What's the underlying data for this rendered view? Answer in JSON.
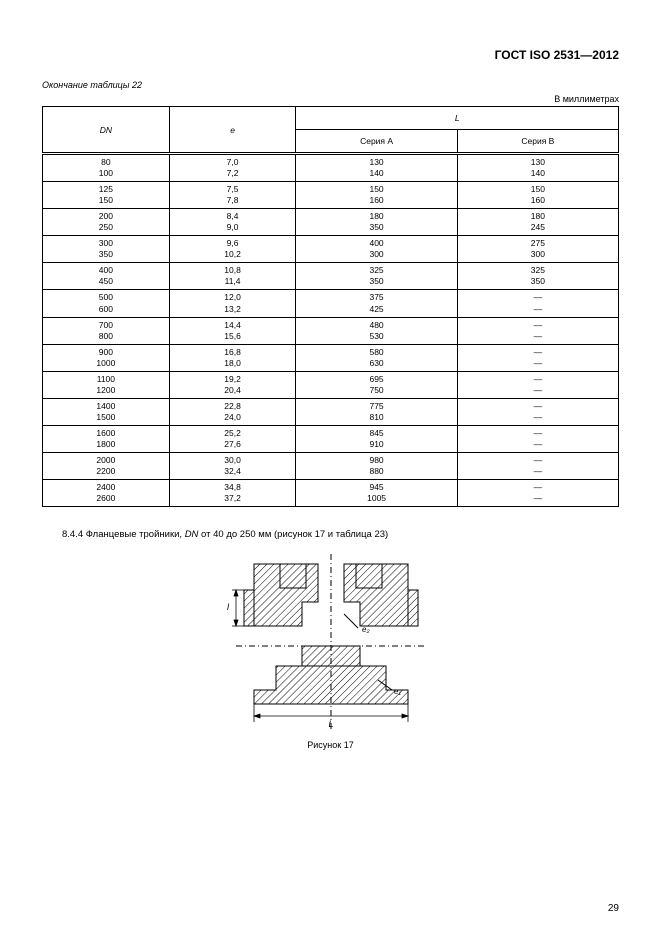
{
  "document": {
    "header": "ГОСТ ISO 2531—2012",
    "tableEndLabel": "Окончание таблицы 22",
    "unitsLabel": "В миллиметрах",
    "pageNumber": "29"
  },
  "table": {
    "columns": {
      "col1": "DN",
      "col2": "e",
      "col3_group": "L",
      "col3a": "Серия А",
      "col3b": "Серия В"
    },
    "colWidths": [
      "22%",
      "22%",
      "28%",
      "28%"
    ],
    "groups": [
      {
        "rows": [
          [
            "80",
            "7,0",
            "130",
            "130"
          ],
          [
            "100",
            "7,2",
            "140",
            "140"
          ]
        ]
      },
      {
        "rows": [
          [
            "125",
            "7,5",
            "150",
            "150"
          ],
          [
            "150",
            "7,8",
            "160",
            "160"
          ]
        ]
      },
      {
        "rows": [
          [
            "200",
            "8,4",
            "180",
            "180"
          ],
          [
            "250",
            "9,0",
            "350",
            "245"
          ]
        ]
      },
      {
        "rows": [
          [
            "300",
            "9,6",
            "400",
            "275"
          ],
          [
            "350",
            "10,2",
            "300",
            "300"
          ]
        ]
      },
      {
        "rows": [
          [
            "400",
            "10,8",
            "325",
            "325"
          ],
          [
            "450",
            "11,4",
            "350",
            "350"
          ]
        ]
      },
      {
        "rows": [
          [
            "500",
            "12,0",
            "375",
            "—"
          ],
          [
            "600",
            "13,2",
            "425",
            "—"
          ]
        ]
      },
      {
        "rows": [
          [
            "700",
            "14,4",
            "480",
            "—"
          ],
          [
            "800",
            "15,6",
            "530",
            "—"
          ]
        ]
      },
      {
        "rows": [
          [
            "900",
            "16,8",
            "580",
            "—"
          ],
          [
            "1000",
            "18,0",
            "630",
            "—"
          ]
        ]
      },
      {
        "rows": [
          [
            "1100",
            "19,2",
            "695",
            "—"
          ],
          [
            "1200",
            "20,4",
            "750",
            "—"
          ]
        ]
      },
      {
        "rows": [
          [
            "1400",
            "22,8",
            "775",
            "—"
          ],
          [
            "1500",
            "24,0",
            "810",
            "—"
          ]
        ]
      },
      {
        "rows": [
          [
            "1600",
            "25,2",
            "845",
            "—"
          ],
          [
            "1800",
            "27,6",
            "910",
            "—"
          ]
        ]
      },
      {
        "rows": [
          [
            "2000",
            "30,0",
            "980",
            "—"
          ],
          [
            "2200",
            "32,4",
            "880",
            "—"
          ]
        ]
      },
      {
        "rows": [
          [
            "2400",
            "34,8",
            "945",
            "—"
          ],
          [
            "2600",
            "37,2",
            "1005",
            "—"
          ]
        ]
      }
    ]
  },
  "section": {
    "prefix": "8.4.4 Фланцевые тройники, ",
    "italic": "DN",
    "suffix": " от 40 до 250 мм (рисунок 17 и таблица 23)"
  },
  "figure": {
    "caption": "Рисунок 17",
    "labels": {
      "L": "L",
      "l": "l",
      "e1": "e₁",
      "e2": "e₂"
    },
    "style": {
      "stroke": "#000000",
      "fill": "#000000",
      "hatchSpacing": 4
    }
  }
}
